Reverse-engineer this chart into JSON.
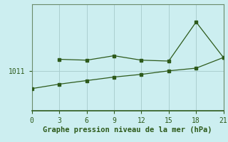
{
  "xlabel": "Graphe pression niveau de la mer (hPa)",
  "background_color": "#cceef0",
  "line_color": "#2d5a1b",
  "grid_color": "#aacfcf",
  "series1_x": [
    3,
    6,
    9,
    12,
    15,
    18,
    21
  ],
  "series1_y": [
    1012.3,
    1012.2,
    1012.7,
    1012.2,
    1012.1,
    1016.5,
    1012.5
  ],
  "series2_x": [
    0,
    3,
    6,
    9,
    12,
    15,
    18,
    21
  ],
  "series2_y": [
    1009.0,
    1009.5,
    1009.9,
    1010.3,
    1010.6,
    1011.0,
    1011.3,
    1012.5
  ],
  "xlim": [
    0,
    21
  ],
  "ylim_min": 1006.5,
  "ylim_max": 1018.5,
  "xticks": [
    0,
    3,
    6,
    9,
    12,
    15,
    18,
    21
  ],
  "xlabel_fontsize": 7.5,
  "tick_fontsize": 7,
  "ytick_value": 1011
}
